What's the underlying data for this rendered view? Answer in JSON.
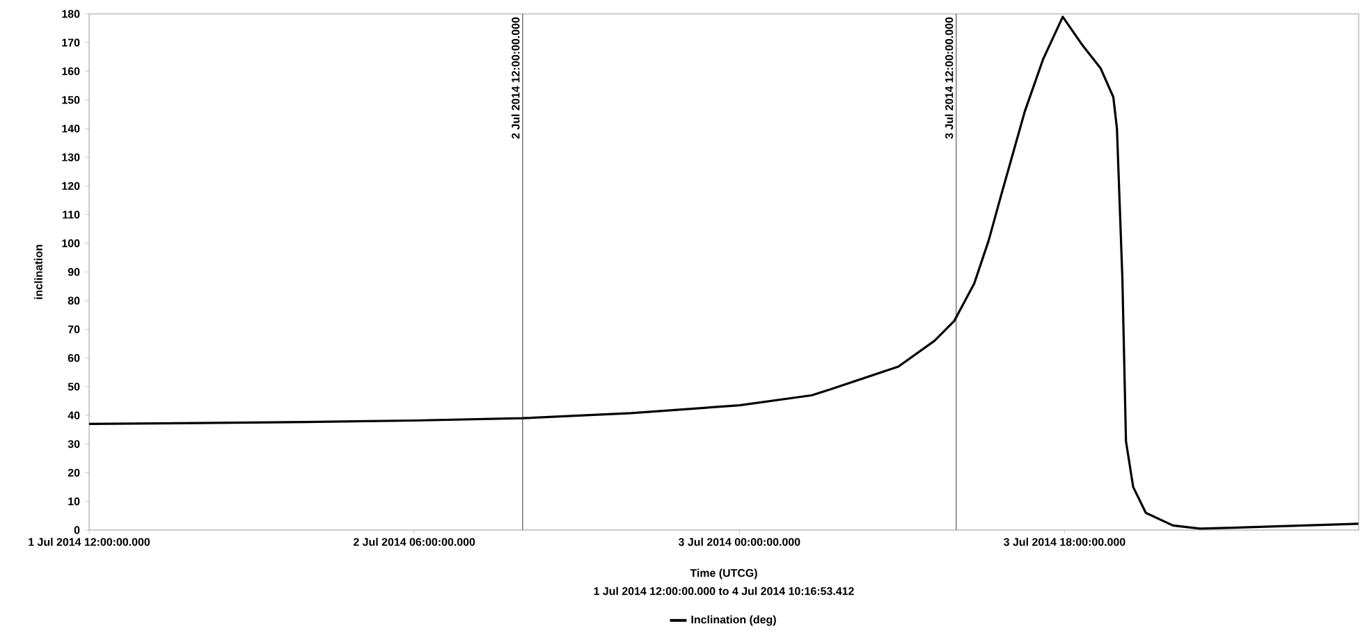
{
  "chart_data": {
    "type": "line",
    "xlabel": "Time (UTCG)",
    "ylabel": "inclination",
    "annotations": [
      "1 Jul 2014 12:00:00.000 to 4 Jul 2014 10:16:53.412"
    ],
    "x": [
      "2014-07-01T12:00",
      "2014-07-01T18:00",
      "2014-07-02T00:00",
      "2014-07-02T06:00",
      "2014-07-02T12:00",
      "2014-07-02T18:00",
      "2014-07-03T00:00",
      "2014-07-03T04:00",
      "2014-07-03T05:00",
      "2014-07-03T08:48",
      "2014-07-03T10:48",
      "2014-07-03T11:54",
      "2014-07-03T13:00",
      "2014-07-03T13:48",
      "2014-07-03T14:30",
      "2014-07-03T15:48",
      "2014-07-03T16:48",
      "2014-07-03T17:54",
      "2014-07-03T19:00",
      "2014-07-03T20:00",
      "2014-07-03T20:42",
      "2014-07-03T20:54",
      "2014-07-03T21:12",
      "2014-07-03T21:24",
      "2014-07-03T21:48",
      "2014-07-03T22:30",
      "2014-07-04T00:00",
      "2014-07-04T01:30",
      "2014-07-04T04:48",
      "2014-07-04T09:42",
      "2014-07-04T10:16"
    ],
    "series": [
      {
        "name": "Inclination (deg)",
        "color": "#000000",
        "values": [
          37,
          37.3,
          37.7,
          38.2,
          39,
          40.8,
          43.5,
          47,
          49,
          57,
          66,
          73,
          86,
          101,
          117,
          146,
          164,
          179,
          169,
          161,
          151,
          140,
          88,
          31,
          15,
          6,
          1.6,
          0.5,
          1.1,
          2.1,
          2.2
        ]
      }
    ],
    "xlim": [
      "2014-07-01T12:00",
      "2014-07-04T10:16:53"
    ],
    "xticks": [
      {
        "value": "2014-07-01T12:00",
        "label": "1 Jul 2014 12:00:00.000"
      },
      {
        "value": "2014-07-02T06:00",
        "label": "2 Jul 2014 06:00:00.000"
      },
      {
        "value": "2014-07-03T00:00",
        "label": "3 Jul 2014 00:00:00.000"
      },
      {
        "value": "2014-07-03T18:00",
        "label": "3 Jul 2014 18:00:00.000"
      }
    ],
    "ylim": [
      0,
      180
    ],
    "yticks": [
      0,
      10,
      20,
      30,
      40,
      50,
      60,
      70,
      80,
      90,
      100,
      110,
      120,
      130,
      140,
      150,
      160,
      170,
      180
    ],
    "ref_lines": [
      {
        "axis": "x",
        "value": "2014-07-02T12:00",
        "label": "2 Jul 2014 12:00:00.000",
        "color": "#808080"
      },
      {
        "axis": "x",
        "value": "2014-07-03T12:00",
        "label": "3 Jul 2014 12:00:00.000",
        "color": "#808080"
      }
    ],
    "legend": "bottom",
    "grid": false,
    "marker": "none",
    "line_style": "solid"
  }
}
